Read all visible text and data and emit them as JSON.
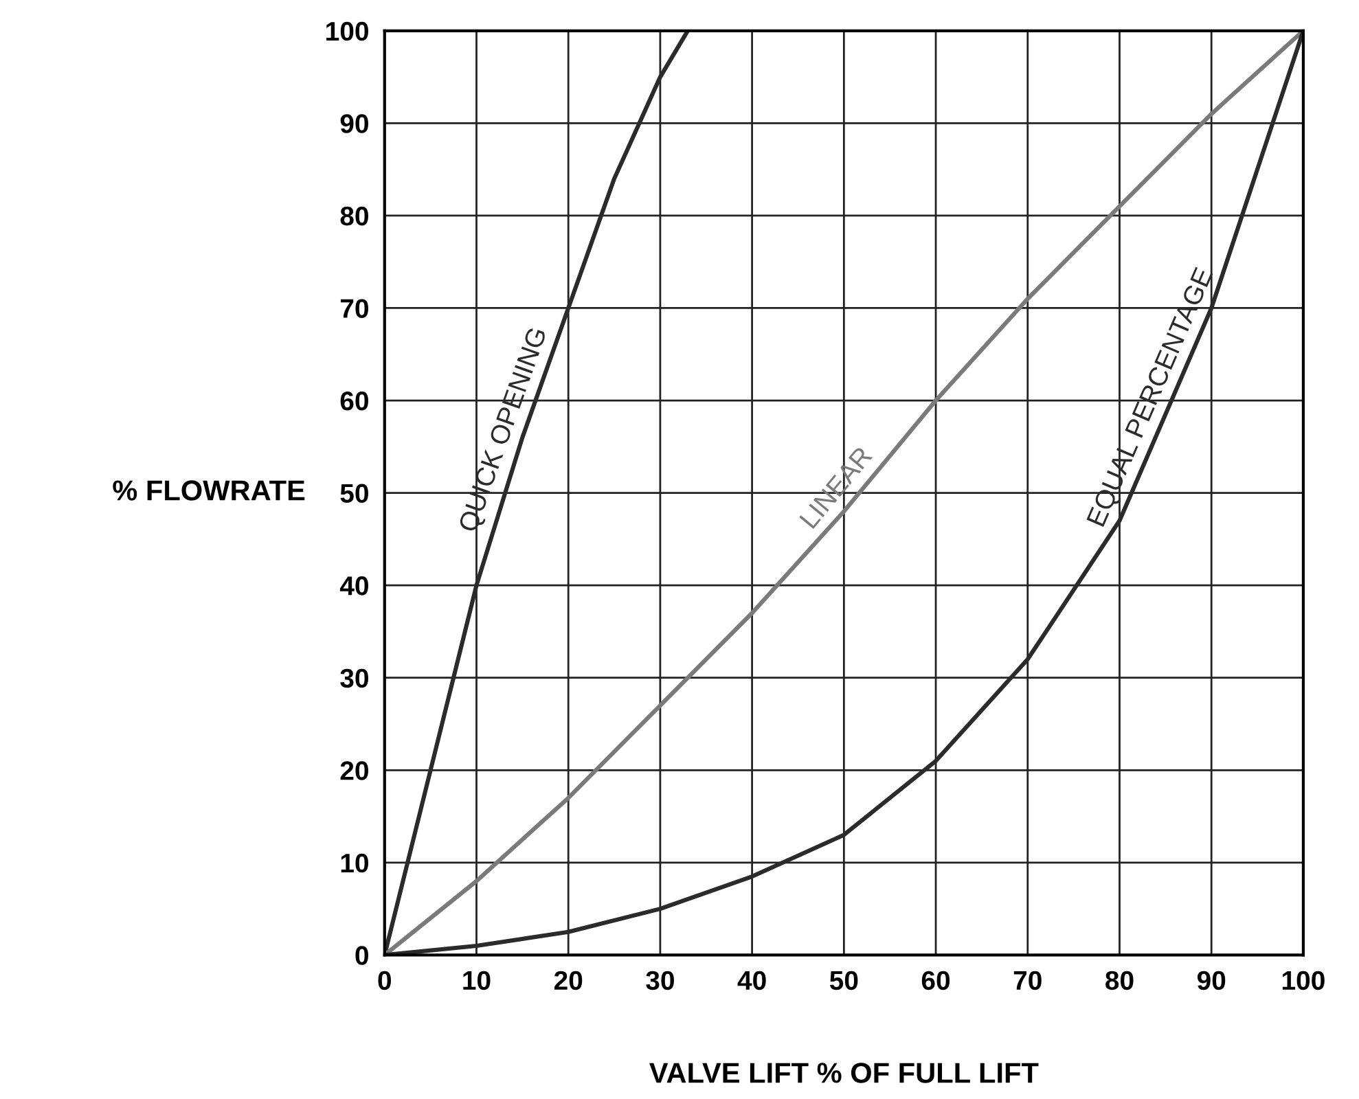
{
  "chart_data": {
    "type": "line",
    "xlabel": "VALVE LIFT % OF FULL LIFT",
    "ylabel": "% FLOWRATE",
    "xlim": [
      0,
      100
    ],
    "ylim": [
      0,
      100
    ],
    "xticks": [
      0,
      10,
      20,
      30,
      40,
      50,
      60,
      70,
      80,
      90,
      100
    ],
    "yticks": [
      0,
      10,
      20,
      30,
      40,
      50,
      60,
      70,
      80,
      90,
      100
    ],
    "grid": true,
    "marker": "none",
    "line_style": "solid",
    "series": [
      {
        "name": "QUICK OPENING",
        "color": "#2b2b2b",
        "x": [
          0,
          5,
          10,
          15,
          20,
          25,
          30,
          33
        ],
        "values": [
          0,
          20,
          40,
          56,
          70,
          84,
          95,
          100
        ]
      },
      {
        "name": "LINEAR",
        "color": "#7a7a7a",
        "x": [
          0,
          10,
          20,
          30,
          40,
          50,
          60,
          70,
          80,
          90,
          100
        ],
        "values": [
          0,
          8,
          17,
          27,
          37,
          48,
          60,
          71,
          81,
          91,
          100
        ]
      },
      {
        "name": "EQUAL PERCENTAGE",
        "color": "#2b2b2b",
        "x": [
          0,
          10,
          20,
          30,
          40,
          50,
          60,
          70,
          80,
          90,
          95,
          100
        ],
        "values": [
          0,
          1,
          2.5,
          5,
          8.5,
          13,
          21,
          32,
          47,
          70,
          85,
          100
        ]
      }
    ]
  }
}
